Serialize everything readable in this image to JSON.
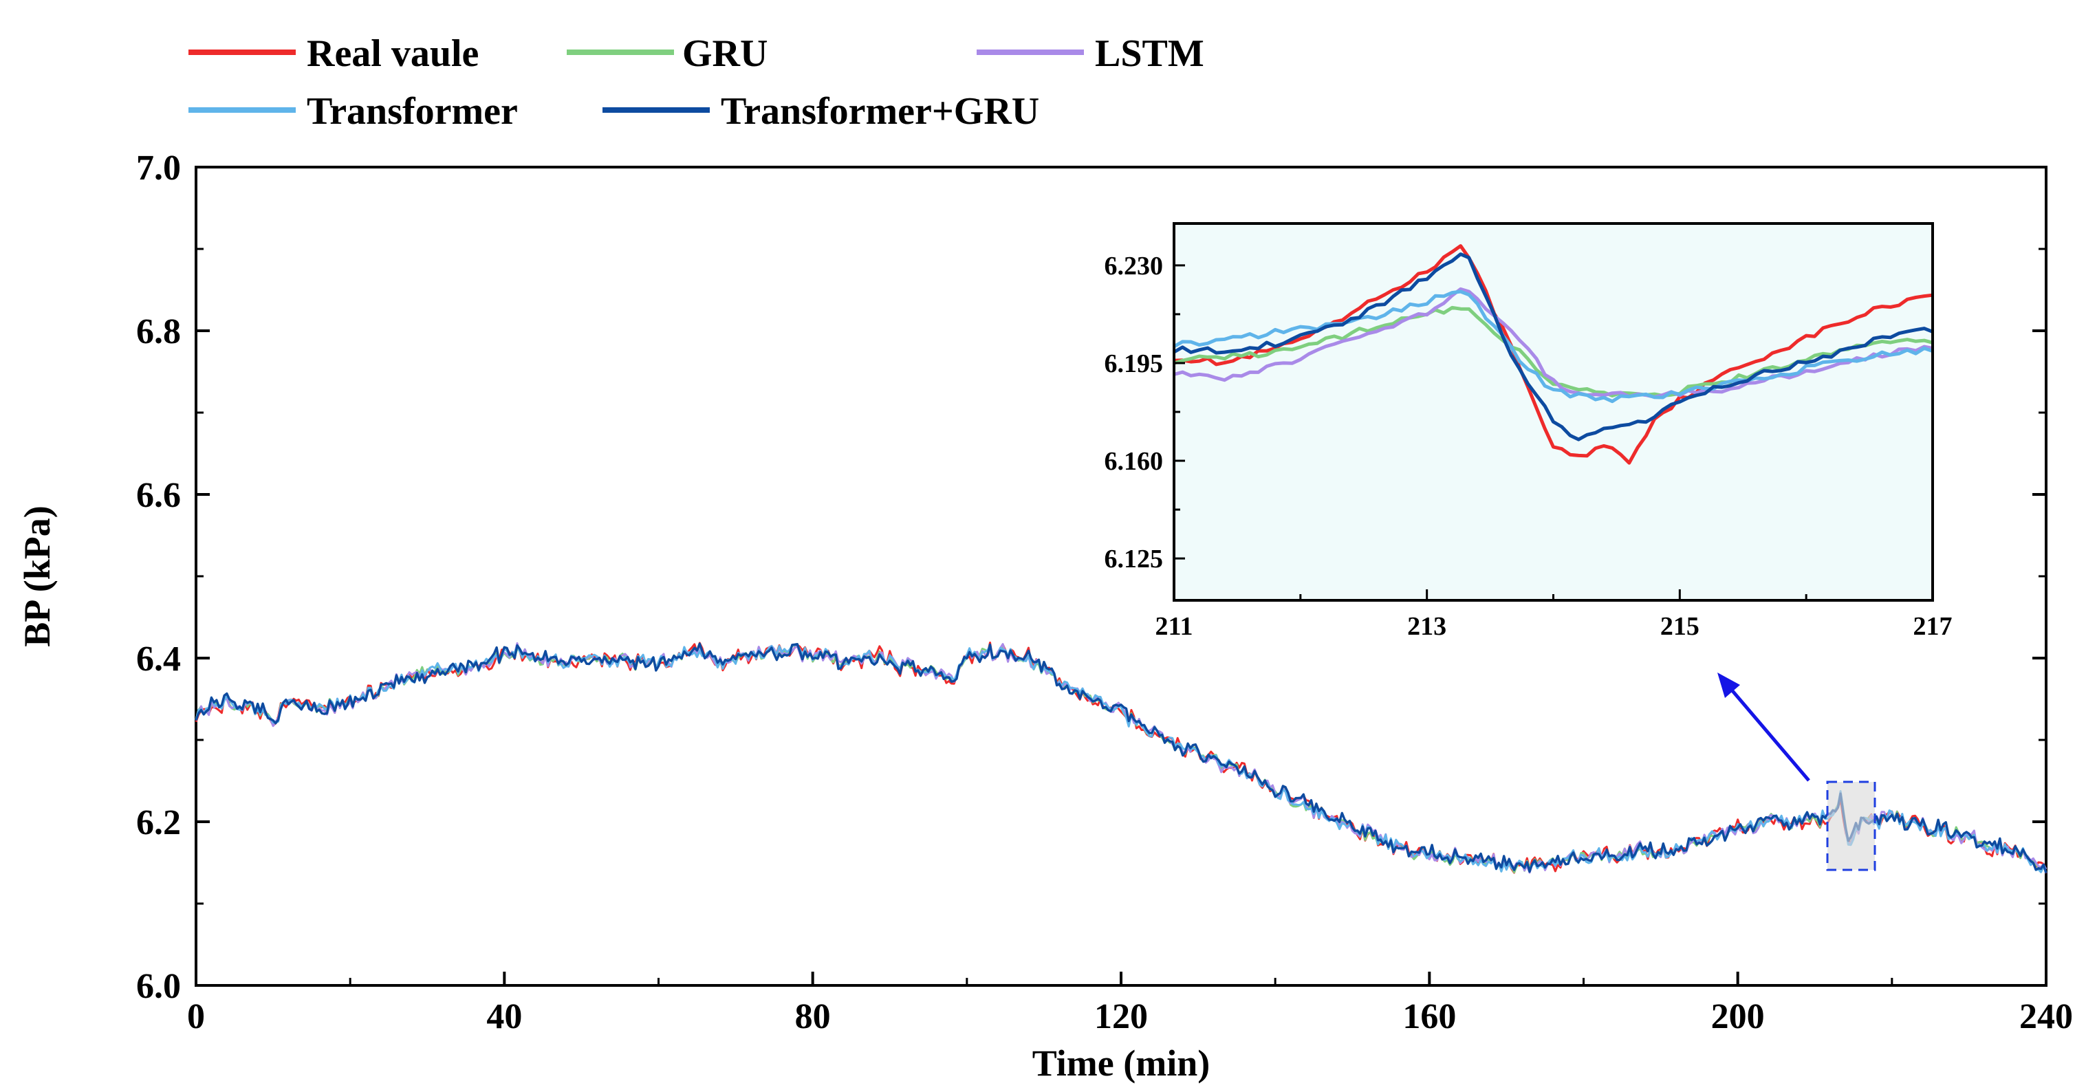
{
  "chart_data": {
    "type": "line",
    "xlabel": "Time (min)",
    "ylabel": "BP (kPa)",
    "xlim": [
      0,
      240
    ],
    "ylim": [
      6.0,
      7.0
    ],
    "xticks": [
      "0",
      "40",
      "80",
      "120",
      "160",
      "200",
      "240"
    ],
    "yticks": [
      "6.0",
      "6.2",
      "6.4",
      "6.6",
      "6.8",
      "7.0"
    ],
    "grid": false,
    "legend_position": "top",
    "colors": {
      "Real vaule": "#ee2b2b",
      "GRU": "#7fcf7f",
      "LSTM": "#a98ae8",
      "Transformer": "#5fb4ea",
      "Transformer+GRU": "#0d4ba0"
    },
    "series": [
      {
        "name": "Real vaule"
      },
      {
        "name": "GRU"
      },
      {
        "name": "LSTM"
      },
      {
        "name": "Transformer"
      },
      {
        "name": "Transformer+GRU"
      }
    ],
    "x": [
      0,
      4,
      8,
      10,
      12,
      16,
      20,
      24,
      28,
      32,
      36,
      40,
      42,
      44,
      48,
      52,
      56,
      60,
      64,
      68,
      72,
      76,
      80,
      84,
      88,
      92,
      96,
      98,
      100,
      104,
      108,
      112,
      116,
      120,
      124,
      128,
      132,
      136,
      140,
      144,
      148,
      152,
      156,
      160,
      164,
      168,
      172,
      176,
      180,
      184,
      188,
      192,
      196,
      200,
      204,
      208,
      212,
      213.3,
      214.2,
      216,
      220,
      224,
      228,
      232,
      236,
      240
    ],
    "base_values": [
      6.335,
      6.345,
      6.34,
      6.325,
      6.345,
      6.34,
      6.345,
      6.365,
      6.375,
      6.385,
      6.39,
      6.405,
      6.41,
      6.4,
      6.395,
      6.4,
      6.395,
      6.39,
      6.41,
      6.395,
      6.405,
      6.41,
      6.405,
      6.395,
      6.4,
      6.39,
      6.385,
      6.37,
      6.405,
      6.41,
      6.4,
      6.37,
      6.35,
      6.335,
      6.31,
      6.29,
      6.275,
      6.26,
      6.24,
      6.22,
      6.2,
      6.185,
      6.165,
      6.16,
      6.155,
      6.15,
      6.145,
      6.15,
      6.155,
      6.16,
      6.165,
      6.165,
      6.18,
      6.19,
      6.2,
      6.2,
      6.205,
      6.232,
      6.175,
      6.2,
      6.205,
      6.195,
      6.185,
      6.175,
      6.165,
      6.145
    ],
    "inset": {
      "xlim": [
        211,
        217
      ],
      "ylim": [
        6.11,
        6.245
      ],
      "xticks": [
        "211",
        "213",
        "215",
        "217"
      ],
      "yticks": [
        "6.125",
        "6.160",
        "6.195",
        "6.230"
      ],
      "x": [
        211,
        211.4,
        211.8,
        212.2,
        212.6,
        213,
        213.3,
        213.7,
        214,
        214.2,
        214.4,
        214.6,
        214.8,
        215,
        215.4,
        215.8,
        216.2,
        216.6,
        217
      ],
      "series": [
        {
          "name": "Real vaule",
          "values": [
            6.197,
            6.195,
            6.2,
            6.207,
            6.218,
            6.228,
            6.237,
            6.197,
            6.165,
            6.161,
            6.166,
            6.16,
            6.175,
            6.182,
            6.192,
            6.2,
            6.208,
            6.215,
            6.22
          ]
        },
        {
          "name": "GRU",
          "values": [
            6.196,
            6.197,
            6.199,
            6.203,
            6.208,
            6.213,
            6.215,
            6.2,
            6.188,
            6.186,
            6.184,
            6.184,
            6.184,
            6.185,
            6.189,
            6.194,
            6.199,
            6.203,
            6.203
          ]
        },
        {
          "name": "LSTM",
          "values": [
            6.192,
            6.19,
            6.194,
            6.2,
            6.207,
            6.213,
            6.222,
            6.205,
            6.188,
            6.184,
            6.184,
            6.184,
            6.183,
            6.184,
            6.186,
            6.19,
            6.194,
            6.198,
            6.201
          ]
        },
        {
          "name": "Transformer",
          "values": [
            6.202,
            6.203,
            6.206,
            6.208,
            6.212,
            6.217,
            6.222,
            6.198,
            6.185,
            6.183,
            6.182,
            6.183,
            6.183,
            6.184,
            6.188,
            6.191,
            6.195,
            6.198,
            6.2
          ]
        },
        {
          "name": "Transformer+GRU",
          "values": [
            6.2,
            6.199,
            6.202,
            6.207,
            6.215,
            6.226,
            6.235,
            6.195,
            6.174,
            6.168,
            6.172,
            6.172,
            6.176,
            6.181,
            6.188,
            6.193,
            6.198,
            6.204,
            6.207
          ]
        }
      ]
    }
  }
}
